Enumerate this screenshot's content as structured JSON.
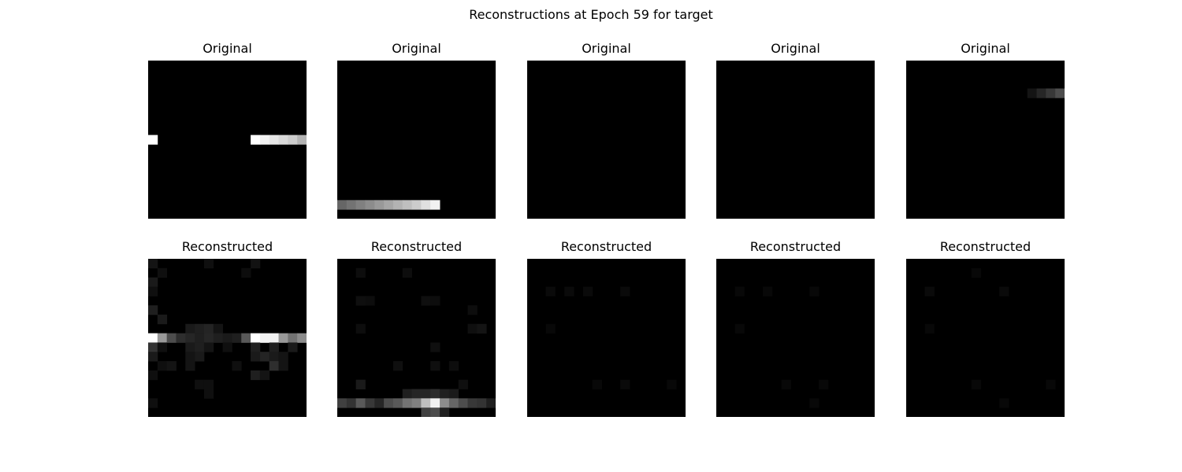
{
  "title": "Reconstructions at Epoch 59 for target",
  "chart_data": {
    "type": "heatmap",
    "title": "Reconstructions at Epoch 59 for target",
    "colormap": "gray",
    "grid_size": [
      17,
      17
    ],
    "value_range": [
      0,
      1
    ],
    "panels": [
      {
        "label": "Original",
        "row": 0,
        "col": 0,
        "pixels": [
          {
            "r": 8,
            "c": 0,
            "v": 1.0
          },
          {
            "r": 8,
            "c": 11,
            "v": 1.0
          },
          {
            "r": 8,
            "c": 12,
            "v": 0.95
          },
          {
            "r": 8,
            "c": 13,
            "v": 0.9
          },
          {
            "r": 8,
            "c": 14,
            "v": 0.85
          },
          {
            "r": 8,
            "c": 15,
            "v": 0.8
          },
          {
            "r": 8,
            "c": 16,
            "v": 0.7
          }
        ]
      },
      {
        "label": "Original",
        "row": 0,
        "col": 1,
        "pixels": [
          {
            "r": 15,
            "c": 0,
            "v": 0.4
          },
          {
            "r": 15,
            "c": 1,
            "v": 0.45
          },
          {
            "r": 15,
            "c": 2,
            "v": 0.5
          },
          {
            "r": 15,
            "c": 3,
            "v": 0.55
          },
          {
            "r": 15,
            "c": 4,
            "v": 0.6
          },
          {
            "r": 15,
            "c": 5,
            "v": 0.65
          },
          {
            "r": 15,
            "c": 6,
            "v": 0.7
          },
          {
            "r": 15,
            "c": 7,
            "v": 0.75
          },
          {
            "r": 15,
            "c": 8,
            "v": 0.8
          },
          {
            "r": 15,
            "c": 9,
            "v": 0.88
          },
          {
            "r": 15,
            "c": 10,
            "v": 0.95
          }
        ]
      },
      {
        "label": "Original",
        "row": 0,
        "col": 2,
        "pixels": []
      },
      {
        "label": "Original",
        "row": 0,
        "col": 3,
        "pixels": []
      },
      {
        "label": "Original",
        "row": 0,
        "col": 4,
        "pixels": [
          {
            "r": 3,
            "c": 13,
            "v": 0.08
          },
          {
            "r": 3,
            "c": 14,
            "v": 0.15
          },
          {
            "r": 3,
            "c": 15,
            "v": 0.22
          },
          {
            "r": 3,
            "c": 16,
            "v": 0.3
          }
        ]
      },
      {
        "label": "Reconstructed",
        "row": 1,
        "col": 0,
        "pixels": [
          {
            "r": 0,
            "c": 0,
            "v": 0.08
          },
          {
            "r": 0,
            "c": 6,
            "v": 0.06
          },
          {
            "r": 0,
            "c": 11,
            "v": 0.07
          },
          {
            "r": 1,
            "c": 1,
            "v": 0.06
          },
          {
            "r": 1,
            "c": 10,
            "v": 0.05
          },
          {
            "r": 2,
            "c": 0,
            "v": 0.1
          },
          {
            "r": 3,
            "c": 0,
            "v": 0.06
          },
          {
            "r": 5,
            "c": 0,
            "v": 0.12
          },
          {
            "r": 6,
            "c": 1,
            "v": 0.1
          },
          {
            "r": 7,
            "c": 4,
            "v": 0.1
          },
          {
            "r": 7,
            "c": 5,
            "v": 0.12
          },
          {
            "r": 7,
            "c": 6,
            "v": 0.14
          },
          {
            "r": 7,
            "c": 7,
            "v": 0.08
          },
          {
            "r": 8,
            "c": 0,
            "v": 1.0
          },
          {
            "r": 8,
            "c": 1,
            "v": 0.6
          },
          {
            "r": 8,
            "c": 2,
            "v": 0.3
          },
          {
            "r": 8,
            "c": 3,
            "v": 0.18
          },
          {
            "r": 8,
            "c": 4,
            "v": 0.15
          },
          {
            "r": 8,
            "c": 5,
            "v": 0.12
          },
          {
            "r": 8,
            "c": 6,
            "v": 0.15
          },
          {
            "r": 8,
            "c": 7,
            "v": 0.12
          },
          {
            "r": 8,
            "c": 8,
            "v": 0.1
          },
          {
            "r": 8,
            "c": 9,
            "v": 0.12
          },
          {
            "r": 8,
            "c": 10,
            "v": 0.35
          },
          {
            "r": 8,
            "c": 11,
            "v": 1.0
          },
          {
            "r": 8,
            "c": 12,
            "v": 0.95
          },
          {
            "r": 8,
            "c": 13,
            "v": 0.95
          },
          {
            "r": 8,
            "c": 14,
            "v": 0.6
          },
          {
            "r": 8,
            "c": 15,
            "v": 0.45
          },
          {
            "r": 8,
            "c": 16,
            "v": 0.55
          },
          {
            "r": 9,
            "c": 0,
            "v": 0.2
          },
          {
            "r": 9,
            "c": 1,
            "v": 0.06
          },
          {
            "r": 9,
            "c": 4,
            "v": 0.1
          },
          {
            "r": 9,
            "c": 5,
            "v": 0.12
          },
          {
            "r": 9,
            "c": 6,
            "v": 0.08
          },
          {
            "r": 9,
            "c": 8,
            "v": 0.06
          },
          {
            "r": 9,
            "c": 11,
            "v": 0.12
          },
          {
            "r": 9,
            "c": 13,
            "v": 0.12
          },
          {
            "r": 9,
            "c": 15,
            "v": 0.1
          },
          {
            "r": 10,
            "c": 0,
            "v": 0.1
          },
          {
            "r": 10,
            "c": 4,
            "v": 0.08
          },
          {
            "r": 10,
            "c": 5,
            "v": 0.1
          },
          {
            "r": 10,
            "c": 11,
            "v": 0.1
          },
          {
            "r": 10,
            "c": 12,
            "v": 0.14
          },
          {
            "r": 10,
            "c": 13,
            "v": 0.1
          },
          {
            "r": 10,
            "c": 14,
            "v": 0.08
          },
          {
            "r": 11,
            "c": 1,
            "v": 0.06
          },
          {
            "r": 11,
            "c": 2,
            "v": 0.08
          },
          {
            "r": 11,
            "c": 4,
            "v": 0.08
          },
          {
            "r": 11,
            "c": 9,
            "v": 0.06
          },
          {
            "r": 11,
            "c": 13,
            "v": 0.18
          },
          {
            "r": 11,
            "c": 14,
            "v": 0.08
          },
          {
            "r": 12,
            "c": 0,
            "v": 0.06
          },
          {
            "r": 12,
            "c": 11,
            "v": 0.12
          },
          {
            "r": 12,
            "c": 12,
            "v": 0.08
          },
          {
            "r": 13,
            "c": 5,
            "v": 0.06
          },
          {
            "r": 13,
            "c": 6,
            "v": 0.06
          },
          {
            "r": 14,
            "c": 6,
            "v": 0.06
          },
          {
            "r": 15,
            "c": 0,
            "v": 0.06
          }
        ]
      },
      {
        "label": "Reconstructed",
        "row": 1,
        "col": 1,
        "pixels": [
          {
            "r": 1,
            "c": 2,
            "v": 0.05
          },
          {
            "r": 1,
            "c": 7,
            "v": 0.05
          },
          {
            "r": 4,
            "c": 2,
            "v": 0.06
          },
          {
            "r": 4,
            "c": 3,
            "v": 0.05
          },
          {
            "r": 4,
            "c": 9,
            "v": 0.06
          },
          {
            "r": 4,
            "c": 10,
            "v": 0.05
          },
          {
            "r": 5,
            "c": 14,
            "v": 0.05
          },
          {
            "r": 7,
            "c": 2,
            "v": 0.05
          },
          {
            "r": 7,
            "c": 14,
            "v": 0.06
          },
          {
            "r": 7,
            "c": 15,
            "v": 0.08
          },
          {
            "r": 9,
            "c": 10,
            "v": 0.06
          },
          {
            "r": 11,
            "c": 6,
            "v": 0.06
          },
          {
            "r": 11,
            "c": 10,
            "v": 0.06
          },
          {
            "r": 11,
            "c": 12,
            "v": 0.05
          },
          {
            "r": 13,
            "c": 2,
            "v": 0.1
          },
          {
            "r": 13,
            "c": 13,
            "v": 0.06
          },
          {
            "r": 14,
            "c": 7,
            "v": 0.12
          },
          {
            "r": 14,
            "c": 8,
            "v": 0.15
          },
          {
            "r": 14,
            "c": 9,
            "v": 0.15
          },
          {
            "r": 14,
            "c": 10,
            "v": 0.18
          },
          {
            "r": 14,
            "c": 11,
            "v": 0.12
          },
          {
            "r": 14,
            "c": 12,
            "v": 0.1
          },
          {
            "r": 15,
            "c": 0,
            "v": 0.25
          },
          {
            "r": 15,
            "c": 1,
            "v": 0.2
          },
          {
            "r": 15,
            "c": 2,
            "v": 0.35
          },
          {
            "r": 15,
            "c": 3,
            "v": 0.22
          },
          {
            "r": 15,
            "c": 4,
            "v": 0.15
          },
          {
            "r": 15,
            "c": 5,
            "v": 0.3
          },
          {
            "r": 15,
            "c": 6,
            "v": 0.35
          },
          {
            "r": 15,
            "c": 7,
            "v": 0.45
          },
          {
            "r": 15,
            "c": 8,
            "v": 0.5
          },
          {
            "r": 15,
            "c": 9,
            "v": 0.75
          },
          {
            "r": 15,
            "c": 10,
            "v": 0.95
          },
          {
            "r": 15,
            "c": 11,
            "v": 0.55
          },
          {
            "r": 15,
            "c": 12,
            "v": 0.4
          },
          {
            "r": 15,
            "c": 13,
            "v": 0.3
          },
          {
            "r": 15,
            "c": 14,
            "v": 0.22
          },
          {
            "r": 15,
            "c": 15,
            "v": 0.2
          },
          {
            "r": 15,
            "c": 16,
            "v": 0.12
          },
          {
            "r": 16,
            "c": 9,
            "v": 0.25
          },
          {
            "r": 16,
            "c": 10,
            "v": 0.3
          },
          {
            "r": 16,
            "c": 11,
            "v": 0.12
          }
        ]
      },
      {
        "label": "Reconstructed",
        "row": 1,
        "col": 2,
        "pixels": [
          {
            "r": 3,
            "c": 2,
            "v": 0.04
          },
          {
            "r": 3,
            "c": 4,
            "v": 0.04
          },
          {
            "r": 3,
            "c": 6,
            "v": 0.04
          },
          {
            "r": 3,
            "c": 10,
            "v": 0.04
          },
          {
            "r": 7,
            "c": 2,
            "v": 0.03
          },
          {
            "r": 13,
            "c": 7,
            "v": 0.03
          },
          {
            "r": 13,
            "c": 10,
            "v": 0.04
          },
          {
            "r": 13,
            "c": 15,
            "v": 0.03
          }
        ]
      },
      {
        "label": "Reconstructed",
        "row": 1,
        "col": 3,
        "pixels": [
          {
            "r": 3,
            "c": 2,
            "v": 0.03
          },
          {
            "r": 3,
            "c": 5,
            "v": 0.03
          },
          {
            "r": 3,
            "c": 10,
            "v": 0.03
          },
          {
            "r": 7,
            "c": 2,
            "v": 0.03
          },
          {
            "r": 13,
            "c": 7,
            "v": 0.03
          },
          {
            "r": 13,
            "c": 11,
            "v": 0.03
          },
          {
            "r": 15,
            "c": 10,
            "v": 0.03
          }
        ]
      },
      {
        "label": "Reconstructed",
        "row": 1,
        "col": 4,
        "pixels": [
          {
            "r": 1,
            "c": 7,
            "v": 0.03
          },
          {
            "r": 3,
            "c": 2,
            "v": 0.04
          },
          {
            "r": 3,
            "c": 10,
            "v": 0.04
          },
          {
            "r": 7,
            "c": 2,
            "v": 0.03
          },
          {
            "r": 13,
            "c": 7,
            "v": 0.03
          },
          {
            "r": 13,
            "c": 15,
            "v": 0.03
          },
          {
            "r": 15,
            "c": 10,
            "v": 0.03
          }
        ]
      }
    ]
  }
}
